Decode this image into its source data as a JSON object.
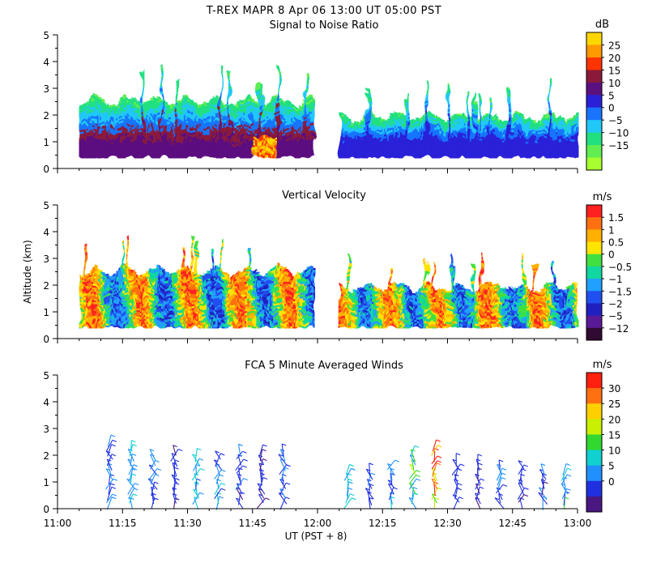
{
  "header": {
    "line": "T-REX   MAPR   8 Apr 06   13:00 UT   05:00   PST"
  },
  "chart_data": [
    {
      "type": "heatmap",
      "title": "Signal to Noise Ratio",
      "unit": "dB",
      "xlabel": "",
      "ylabel": "",
      "ylim": [
        0,
        5
      ],
      "y_ticks": [
        "0",
        "1",
        "2",
        "3",
        "4",
        "5"
      ],
      "data_gap": [
        "11:59",
        "12:05"
      ],
      "colorbar": {
        "labels": [
          "25",
          "20",
          "15",
          "10",
          "5",
          "0",
          "−5",
          "−10",
          "−15"
        ],
        "colors": [
          "#ffd700",
          "#ff9900",
          "#ff3300",
          "#8b1a3a",
          "#5b1080",
          "#2a20d8",
          "#1874ff",
          "#20c8f8",
          "#20e080",
          "#60ee50",
          "#a8ff30"
        ]
      }
    },
    {
      "type": "heatmap",
      "title": "Vertical Velocity",
      "unit": "m/s",
      "xlabel": "",
      "ylabel": "Altitude (km)",
      "ylim": [
        0,
        5
      ],
      "y_ticks": [
        "0",
        "1",
        "2",
        "3",
        "4",
        "5"
      ],
      "data_gap": [
        "11:59",
        "12:05"
      ],
      "colorbar": {
        "labels": [
          "1.5",
          "1",
          "0.5",
          "0",
          "−0.5",
          "−1",
          "−1.5",
          "−2",
          "−5",
          "−12"
        ],
        "colors": [
          "#ff2020",
          "#ff7010",
          "#ffb000",
          "#ffe400",
          "#40e040",
          "#10d8a0",
          "#20a0ff",
          "#2050f0",
          "#2020c0",
          "#5a1a98",
          "#300a30"
        ]
      }
    },
    {
      "type": "scatter",
      "title": "FCA 5 Minute Averaged Winds",
      "unit": "m/s",
      "xlabel": "UT  (PST + 8)",
      "ylabel": "",
      "ylim": [
        0,
        5
      ],
      "y_ticks": [
        "0",
        "1",
        "2",
        "3",
        "4",
        "5"
      ],
      "x_ticks": [
        "11:00",
        "11:15",
        "11:30",
        "11:45",
        "12:00",
        "12:15",
        "12:30",
        "12:45",
        "13:00"
      ],
      "xlim": [
        "11:00",
        "13:00"
      ],
      "colorbar": {
        "labels": [
          "30",
          "25",
          "20",
          "15",
          "10",
          "5",
          "0"
        ],
        "colors": [
          "#ff2010",
          "#ff7010",
          "#ffd000",
          "#c8f000",
          "#30d830",
          "#10d0d0",
          "#2090ff",
          "#2030e0",
          "#4a1880"
        ]
      },
      "profile_times_min": [
        12,
        17,
        22,
        27,
        32,
        37,
        42,
        47,
        52,
        67,
        72,
        77,
        82,
        87,
        92,
        97,
        102,
        107,
        112,
        117
      ],
      "profile_top_km": [
        2.6,
        2.4,
        2.1,
        2.2,
        2.0,
        2.1,
        2.2,
        2.3,
        2.2,
        1.6,
        1.6,
        1.7,
        2.3,
        2.5,
        1.9,
        1.9,
        1.8,
        1.7,
        1.6,
        1.6
      ],
      "profile_speed_ms": [
        6,
        12,
        7,
        5,
        11,
        9,
        6,
        4,
        7,
        10,
        6,
        9,
        14,
        28,
        5,
        4,
        8,
        5,
        6,
        11
      ]
    }
  ]
}
